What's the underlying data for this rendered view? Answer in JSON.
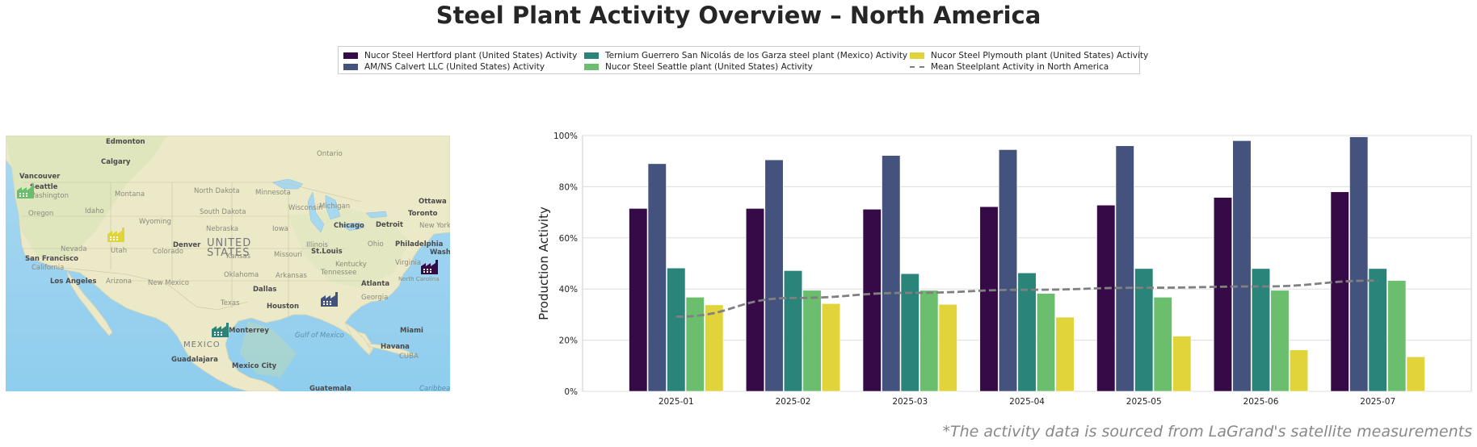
{
  "title": "Steel Plant Activity Overview – North America",
  "footnote": "*The activity data is sourced from LaGrand's satellite measurements",
  "legend": {
    "items": [
      {
        "label": "Nucor Steel Hertford plant (United States) Activity",
        "color": "#360a46",
        "kind": "bar"
      },
      {
        "label": "AM/NS Calvert LLC (United States) Activity",
        "color": "#44537d",
        "kind": "bar"
      },
      {
        "label": "Ternium Guerrero San Nicolás de los Garza steel plant (Mexico) Activity",
        "color": "#2a8479",
        "kind": "bar"
      },
      {
        "label": "Nucor Steel Seattle plant (United States) Activity",
        "color": "#6abe6e",
        "kind": "bar"
      },
      {
        "label": "Nucor Steel Plymouth plant (United States) Activity",
        "color": "#e1d43a",
        "kind": "bar"
      },
      {
        "label": "Mean Steelplant Activity in North America",
        "color": "#808080",
        "kind": "line"
      }
    ]
  },
  "map": {
    "labels": [
      "Edmonton",
      "Calgary",
      "Vancouver",
      "Seattle",
      "Washington",
      "Montana",
      "North Dakota",
      "Minnesota",
      "Ontario",
      "Ottawa",
      "Toronto",
      "Oregon",
      "Idaho",
      "Wyoming",
      "South Dakota",
      "Wisconsin",
      "Michigan",
      "Chicago",
      "Detroit",
      "New York",
      "Nebraska",
      "Iowa",
      "Denver",
      "UNITED",
      "STATES",
      "Utah",
      "Colorado",
      "Kansas",
      "Nevada",
      "San Francisco",
      "California",
      "Missouri",
      "Illinois",
      "St.Louis",
      "Ohio",
      "Philadelphia",
      "Wash",
      "Kentucky",
      "Virginia",
      "Tennessee",
      "North Carolina",
      "Los Angeles",
      "Arizona",
      "New Mexico",
      "Oklahoma",
      "Arkansas",
      "Atlanta",
      "Dallas",
      "Texas",
      "Georgia",
      "Houston",
      "Gulf of Mexico",
      "Miami",
      "Havana",
      "CUBA",
      "MEXICO",
      "Monterrey",
      "Guadalajara",
      "Mexico City",
      "Guatemala",
      "Caribbean"
    ],
    "markers": [
      {
        "plant": "Nucor Steel Seattle plant (United States)",
        "color": "#6abe6e"
      },
      {
        "plant": "Nucor Steel Plymouth plant (United States)",
        "color": "#e1d43a"
      },
      {
        "plant": "Nucor Steel Hertford plant (United States)",
        "color": "#360a46"
      },
      {
        "plant": "AM/NS Calvert LLC (United States)",
        "color": "#44537d"
      },
      {
        "plant": "Ternium Guerrero San Nicolás de los Garza steel plant (Mexico)",
        "color": "#2a8479"
      }
    ]
  },
  "chart_data": {
    "type": "bar",
    "ylabel": "Production Activity",
    "xlabel": "",
    "categories": [
      "2025-01",
      "2025-02",
      "2025-03",
      "2025-04",
      "2025-05",
      "2025-06",
      "2025-07"
    ],
    "ylim": [
      0,
      100
    ],
    "yticks": [
      "0%",
      "20%",
      "40%",
      "60%",
      "80%",
      "100%"
    ],
    "grid": true,
    "legend_position": "top-center",
    "series": [
      {
        "name": "Nucor Steel Hertford plant (United States) Activity",
        "color": "#360a46",
        "values": [
          71.5,
          71.5,
          71.2,
          72.2,
          72.8,
          75.8,
          78
        ]
      },
      {
        "name": "AM/NS Calvert LLC (United States) Activity",
        "color": "#44537d",
        "values": [
          89,
          90.5,
          92.2,
          94.5,
          96,
          98,
          99.5
        ]
      },
      {
        "name": "Ternium Guerrero San Nicolás de los Garza steel plant (Mexico) Activity",
        "color": "#2a8479",
        "values": [
          48.2,
          47.2,
          46,
          46.3,
          48,
          48,
          48
        ]
      },
      {
        "name": "Nucor Steel Seattle plant (United States) Activity",
        "color": "#6abe6e",
        "values": [
          36.8,
          39.5,
          39.5,
          38.3,
          36.8,
          39.5,
          43.3
        ]
      },
      {
        "name": "Nucor Steel Plymouth plant (United States) Activity",
        "color": "#e1d43a",
        "values": [
          33.8,
          34.3,
          34,
          29,
          21.6,
          16.2,
          13.5
        ]
      }
    ],
    "mean_line": {
      "name": "Mean Steelplant Activity in North America",
      "color": "#808080",
      "values": [
        29.2,
        36.5,
        38.5,
        39.7,
        40.5,
        41,
        43.3
      ]
    }
  }
}
